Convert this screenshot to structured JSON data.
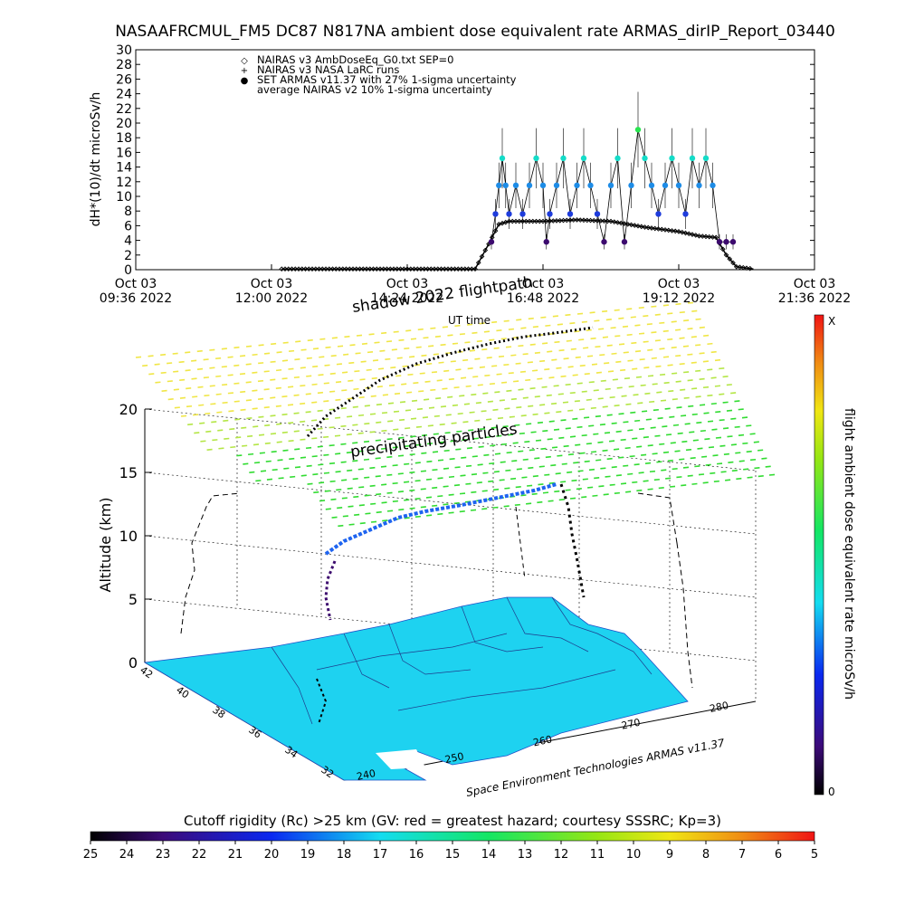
{
  "title": "NASAAFRCMUL_FM5 DC87 N817NA ambient dose equivalent rate ARMAS_dirIP_Report_03440",
  "chart_data": [
    {
      "type": "scatter",
      "ylabel": "dH*(10)/dt microSv/h",
      "xlabel": "UT time",
      "ylim": [
        0,
        30
      ],
      "yticks": [
        "0",
        "2",
        "4",
        "6",
        "8",
        "10",
        "12",
        "14",
        "16",
        "18",
        "20",
        "22",
        "24",
        "26",
        "28",
        "30"
      ],
      "xticks": [
        {
          "l1": "Oct 03",
          "l2": "09:36 2022"
        },
        {
          "l1": "Oct 03",
          "l2": "12:00 2022"
        },
        {
          "l1": "Oct 03",
          "l2": "14:24 2022"
        },
        {
          "l1": "Oct 03",
          "l2": "16:48 2022"
        },
        {
          "l1": "Oct 03",
          "l2": "19:12 2022"
        },
        {
          "l1": "Oct 03",
          "l2": "21:36 2022"
        }
      ],
      "legend": [
        {
          "symbol": "◇",
          "text": "NAIRAS v3 AmbDoseEq_G0.txt SEP=0"
        },
        {
          "symbol": "+",
          "text": "NAIRAS v3 NASA LaRC runs"
        },
        {
          "symbol": "●",
          "text": "SET ARMAS v11.37 with 27% 1-sigma uncertainty",
          "color": "#1e3cdc"
        },
        {
          "symbol": "",
          "text": "average NAIRAS v2 10% 1-sigma uncertainty"
        }
      ],
      "nairas_profile": [
        {
          "t": 0.215,
          "v": 0.1
        },
        {
          "t": 0.5,
          "v": 0.1
        },
        {
          "t": 0.52,
          "v": 3.5
        },
        {
          "t": 0.535,
          "v": 6.2
        },
        {
          "t": 0.55,
          "v": 6.6
        },
        {
          "t": 0.6,
          "v": 6.6
        },
        {
          "t": 0.65,
          "v": 6.8
        },
        {
          "t": 0.7,
          "v": 6.6
        },
        {
          "t": 0.75,
          "v": 5.8
        },
        {
          "t": 0.8,
          "v": 5.2
        },
        {
          "t": 0.83,
          "v": 4.6
        },
        {
          "t": 0.855,
          "v": 4.4
        },
        {
          "t": 0.87,
          "v": 2.0
        },
        {
          "t": 0.885,
          "v": 0.4
        },
        {
          "t": 0.91,
          "v": 0.1
        }
      ],
      "armas_points": [
        {
          "t": 0.524,
          "v": 3.8
        },
        {
          "t": 0.53,
          "v": 7.6
        },
        {
          "t": 0.535,
          "v": 11.5
        },
        {
          "t": 0.54,
          "v": 15.2
        },
        {
          "t": 0.545,
          "v": 11.5
        },
        {
          "t": 0.55,
          "v": 7.6
        },
        {
          "t": 0.56,
          "v": 11.5
        },
        {
          "t": 0.57,
          "v": 7.6
        },
        {
          "t": 0.58,
          "v": 11.5
        },
        {
          "t": 0.59,
          "v": 15.2
        },
        {
          "t": 0.6,
          "v": 11.5
        },
        {
          "t": 0.605,
          "v": 3.8
        },
        {
          "t": 0.61,
          "v": 7.6
        },
        {
          "t": 0.62,
          "v": 11.5
        },
        {
          "t": 0.63,
          "v": 15.2
        },
        {
          "t": 0.64,
          "v": 7.6
        },
        {
          "t": 0.65,
          "v": 11.5
        },
        {
          "t": 0.66,
          "v": 15.2
        },
        {
          "t": 0.67,
          "v": 11.5
        },
        {
          "t": 0.68,
          "v": 7.6
        },
        {
          "t": 0.69,
          "v": 3.8
        },
        {
          "t": 0.7,
          "v": 11.5
        },
        {
          "t": 0.71,
          "v": 15.2
        },
        {
          "t": 0.72,
          "v": 3.8
        },
        {
          "t": 0.73,
          "v": 11.5
        },
        {
          "t": 0.74,
          "v": 19.1
        },
        {
          "t": 0.75,
          "v": 15.2
        },
        {
          "t": 0.76,
          "v": 11.5
        },
        {
          "t": 0.77,
          "v": 7.6
        },
        {
          "t": 0.78,
          "v": 11.5
        },
        {
          "t": 0.79,
          "v": 15.2
        },
        {
          "t": 0.8,
          "v": 11.5
        },
        {
          "t": 0.81,
          "v": 7.6
        },
        {
          "t": 0.82,
          "v": 15.2
        },
        {
          "t": 0.83,
          "v": 11.5
        },
        {
          "t": 0.84,
          "v": 15.2
        },
        {
          "t": 0.85,
          "v": 11.5
        },
        {
          "t": 0.86,
          "v": 3.8
        },
        {
          "t": 0.87,
          "v": 3.8
        },
        {
          "t": 0.88,
          "v": 3.8
        }
      ]
    }
  ],
  "panel3d": {
    "flightpath_label": "shadow 2022 flightpath",
    "particles_label": "precipitating particles",
    "ut_label": "UT time",
    "zlabel": "Altitude (km)",
    "zticks": [
      "0",
      "5",
      "10",
      "15",
      "20"
    ],
    "lat_ticks": [
      "42",
      "40",
      "38",
      "36",
      "34",
      "32"
    ],
    "lon_ticks": [
      "240",
      "250",
      "260",
      "270",
      "280"
    ],
    "credit": "Space Environment Technologies ARMAS v11.37"
  },
  "right_colorbar": {
    "label": "flight ambient dose equivalent rate microSv/h",
    "top_label": "X",
    "bottom_label": "0"
  },
  "bottom_colorbar": {
    "title": "Cutoff rigidity (Rc) >25 km (GV: red = greatest hazard; courtesy SSSRC; Kp=3)",
    "ticks": [
      "25",
      "24",
      "23",
      "22",
      "21",
      "20",
      "19",
      "18",
      "17",
      "16",
      "15",
      "14",
      "13",
      "12",
      "11",
      "10",
      "9",
      "8",
      "7",
      "6",
      "5"
    ]
  },
  "colors": {
    "armas_low": "#3c0a6e",
    "armas_mid": "#1e3cdc",
    "armas_high": "#14dcc8",
    "armas_top": "#28e650",
    "map_fill": "#1ed2f0",
    "particles_upper": "#f0e646",
    "particles_lower": "#32dc32"
  }
}
